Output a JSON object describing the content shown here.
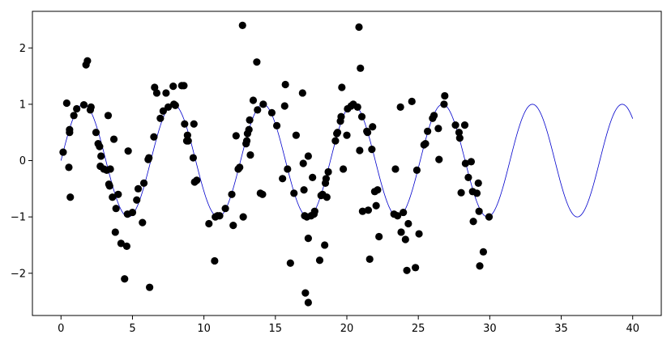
{
  "chart_data": {
    "type": "scatter",
    "title": "",
    "xlabel": "",
    "ylabel": "",
    "xlim": [
      -2.0,
      42.0
    ],
    "ylim": [
      -2.75,
      2.65
    ],
    "x_ticks": [
      0,
      5,
      10,
      15,
      20,
      25,
      30,
      35,
      40
    ],
    "y_ticks": [
      -2,
      -1,
      0,
      1,
      2
    ],
    "grid": false,
    "legend": "none",
    "colors": {
      "curve": "#0000cc",
      "points": "#000000"
    },
    "curve": {
      "function": "sin",
      "x_start": 0,
      "x_end": 40,
      "amplitude": 1.0,
      "period": 6.283
    },
    "points": [
      [
        0.15,
        0.15
      ],
      [
        0.4,
        1.02
      ],
      [
        0.55,
        -0.12
      ],
      [
        0.6,
        0.55
      ],
      [
        0.6,
        0.5
      ],
      [
        0.65,
        -0.65
      ],
      [
        0.9,
        0.8
      ],
      [
        1.1,
        0.92
      ],
      [
        1.6,
        0.99
      ],
      [
        1.75,
        1.7
      ],
      [
        1.85,
        1.77
      ],
      [
        2.05,
        0.9
      ],
      [
        2.1,
        0.95
      ],
      [
        2.45,
        0.5
      ],
      [
        2.6,
        0.3
      ],
      [
        2.7,
        0.25
      ],
      [
        2.75,
        -0.1
      ],
      [
        2.8,
        0.08
      ],
      [
        3.0,
        -0.15
      ],
      [
        3.2,
        -0.17
      ],
      [
        3.3,
        0.8
      ],
      [
        3.35,
        -0.42
      ],
      [
        3.4,
        -0.45
      ],
      [
        3.45,
        -0.15
      ],
      [
        3.6,
        -0.65
      ],
      [
        3.7,
        0.38
      ],
      [
        3.8,
        -1.27
      ],
      [
        3.85,
        -0.85
      ],
      [
        4.0,
        -0.6
      ],
      [
        4.2,
        -1.47
      ],
      [
        4.45,
        -2.1
      ],
      [
        4.6,
        -1.52
      ],
      [
        4.65,
        -0.95
      ],
      [
        4.7,
        0.17
      ],
      [
        5.0,
        -0.92
      ],
      [
        5.3,
        -0.7
      ],
      [
        5.4,
        -0.5
      ],
      [
        5.7,
        -1.1
      ],
      [
        5.8,
        -0.4
      ],
      [
        6.1,
        0.02
      ],
      [
        6.15,
        0.05
      ],
      [
        6.2,
        -2.25
      ],
      [
        6.5,
        0.42
      ],
      [
        6.55,
        1.3
      ],
      [
        6.7,
        1.2
      ],
      [
        6.95,
        0.75
      ],
      [
        7.15,
        0.88
      ],
      [
        7.35,
        1.2
      ],
      [
        7.5,
        0.95
      ],
      [
        7.85,
        1.32
      ],
      [
        7.9,
        1.0
      ],
      [
        8.0,
        0.98
      ],
      [
        8.45,
        1.33
      ],
      [
        8.6,
        1.33
      ],
      [
        8.65,
        0.65
      ],
      [
        8.8,
        0.35
      ],
      [
        8.85,
        0.45
      ],
      [
        8.9,
        0.35
      ],
      [
        9.25,
        0.05
      ],
      [
        9.3,
        0.65
      ],
      [
        9.35,
        -0.38
      ],
      [
        9.5,
        -0.35
      ],
      [
        10.35,
        -1.12
      ],
      [
        10.75,
        -1.78
      ],
      [
        10.8,
        -1.0
      ],
      [
        10.95,
        -0.98
      ],
      [
        11.1,
        -0.98
      ],
      [
        11.5,
        -0.85
      ],
      [
        11.95,
        -0.6
      ],
      [
        12.05,
        -1.15
      ],
      [
        12.25,
        0.44
      ],
      [
        12.4,
        -0.15
      ],
      [
        12.5,
        -0.12
      ],
      [
        12.7,
        2.4
      ],
      [
        12.75,
        -1.0
      ],
      [
        12.95,
        0.3
      ],
      [
        13.0,
        0.35
      ],
      [
        13.05,
        0.48
      ],
      [
        13.15,
        0.55
      ],
      [
        13.2,
        0.72
      ],
      [
        13.25,
        0.1
      ],
      [
        13.45,
        1.07
      ],
      [
        13.7,
        1.75
      ],
      [
        13.75,
        0.9
      ],
      [
        13.95,
        -0.58
      ],
      [
        14.1,
        -0.6
      ],
      [
        14.15,
        1.0
      ],
      [
        14.75,
        0.85
      ],
      [
        15.1,
        0.62
      ],
      [
        15.5,
        -0.32
      ],
      [
        15.65,
        0.97
      ],
      [
        15.7,
        1.35
      ],
      [
        15.85,
        -0.15
      ],
      [
        16.05,
        -1.82
      ],
      [
        16.3,
        -0.58
      ],
      [
        16.45,
        0.45
      ],
      [
        16.9,
        1.2
      ],
      [
        16.95,
        -0.05
      ],
      [
        17.0,
        -0.52
      ],
      [
        17.05,
        -0.98
      ],
      [
        17.1,
        -2.35
      ],
      [
        17.2,
        -1.0
      ],
      [
        17.3,
        -2.52
      ],
      [
        17.3,
        0.08
      ],
      [
        17.3,
        -1.38
      ],
      [
        17.5,
        -0.98
      ],
      [
        17.6,
        -0.3
      ],
      [
        17.7,
        -0.95
      ],
      [
        17.75,
        -0.9
      ],
      [
        18.1,
        -1.77
      ],
      [
        18.2,
        -0.62
      ],
      [
        18.3,
        -0.6
      ],
      [
        18.45,
        -1.5
      ],
      [
        18.5,
        -0.4
      ],
      [
        18.55,
        -0.32
      ],
      [
        18.6,
        -0.65
      ],
      [
        18.7,
        -0.2
      ],
      [
        19.2,
        0.35
      ],
      [
        19.3,
        0.48
      ],
      [
        19.35,
        0.5
      ],
      [
        19.55,
        0.7
      ],
      [
        19.6,
        0.78
      ],
      [
        19.65,
        1.3
      ],
      [
        19.75,
        -0.15
      ],
      [
        20.0,
        0.45
      ],
      [
        20.05,
        0.92
      ],
      [
        20.3,
        0.97
      ],
      [
        20.45,
        1.0
      ],
      [
        20.75,
        0.95
      ],
      [
        20.85,
        2.37
      ],
      [
        20.9,
        0.18
      ],
      [
        20.95,
        1.64
      ],
      [
        21.05,
        0.78
      ],
      [
        21.1,
        -0.9
      ],
      [
        21.4,
        0.52
      ],
      [
        21.45,
        0.5
      ],
      [
        21.5,
        -0.88
      ],
      [
        21.6,
        -1.75
      ],
      [
        21.75,
        0.2
      ],
      [
        21.8,
        0.6
      ],
      [
        21.95,
        -0.55
      ],
      [
        22.05,
        -0.8
      ],
      [
        22.15,
        -0.52
      ],
      [
        22.25,
        -1.35
      ],
      [
        23.3,
        -0.95
      ],
      [
        23.4,
        -0.15
      ],
      [
        23.55,
        -0.98
      ],
      [
        23.75,
        0.95
      ],
      [
        23.8,
        -1.27
      ],
      [
        23.95,
        -0.92
      ],
      [
        24.1,
        -1.4
      ],
      [
        24.2,
        -1.95
      ],
      [
        24.3,
        -1.12
      ],
      [
        24.55,
        1.05
      ],
      [
        24.8,
        -1.9
      ],
      [
        24.9,
        -0.17
      ],
      [
        25.05,
        -1.3
      ],
      [
        25.4,
        0.28
      ],
      [
        25.5,
        0.3
      ],
      [
        25.65,
        0.52
      ],
      [
        26.0,
        0.75
      ],
      [
        26.1,
        0.8
      ],
      [
        26.4,
        0.57
      ],
      [
        26.45,
        0.02
      ],
      [
        26.8,
        1.0
      ],
      [
        26.85,
        1.15
      ],
      [
        27.6,
        0.63
      ],
      [
        27.85,
        0.5
      ],
      [
        27.9,
        0.4
      ],
      [
        28.0,
        -0.57
      ],
      [
        28.25,
        0.63
      ],
      [
        28.3,
        -0.05
      ],
      [
        28.5,
        -0.3
      ],
      [
        28.7,
        -0.02
      ],
      [
        28.8,
        -0.55
      ],
      [
        28.85,
        -1.08
      ],
      [
        29.1,
        -0.58
      ],
      [
        29.2,
        -0.4
      ],
      [
        29.25,
        -0.9
      ],
      [
        29.3,
        -1.87
      ],
      [
        29.55,
        -1.62
      ],
      [
        29.95,
        -1.0
      ]
    ]
  }
}
